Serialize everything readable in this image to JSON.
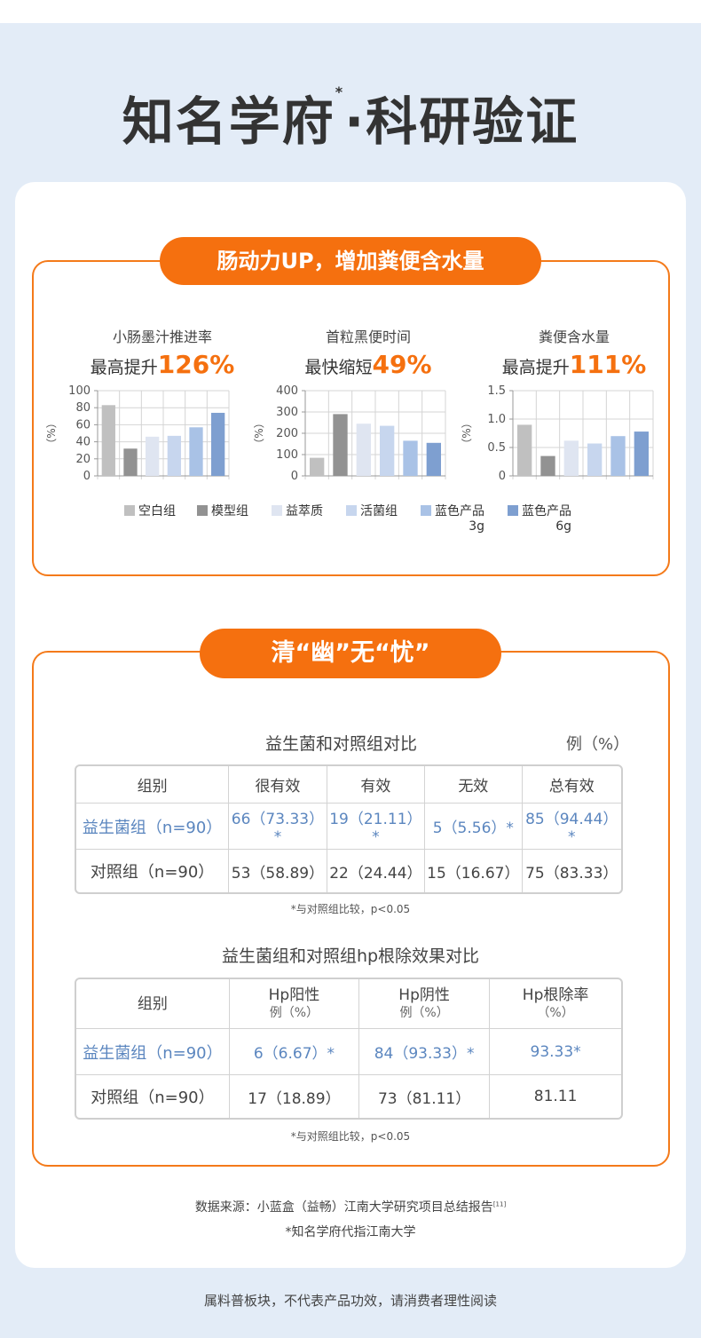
{
  "page": {
    "title_main": "知名学府",
    "title_mark": "*",
    "title_rest": "·科研验证"
  },
  "section1": {
    "pill": "肠动力UP，增加粪便含水量",
    "metrics": [
      {
        "label": "小肠墨汁推进率",
        "prefix": "最高提升",
        "value": "126%"
      },
      {
        "label": "首粒黑便时间",
        "prefix": "最快缩短",
        "value": "49%"
      },
      {
        "label": "粪便含水量",
        "prefix": "最高提升",
        "value": "111%"
      }
    ],
    "legend": [
      {
        "line1": "空白组",
        "line2": "",
        "color": "#c0c0c0"
      },
      {
        "line1": "模型组",
        "line2": "",
        "color": "#929292"
      },
      {
        "line1": "益萃质",
        "line2": "",
        "color": "#dfe5f1"
      },
      {
        "line1": "活菌组",
        "line2": "",
        "color": "#c7d6ee"
      },
      {
        "line1": "蓝色产品",
        "line2": "3g",
        "color": "#a9c2e6"
      },
      {
        "line1": "蓝色产品",
        "line2": "6g",
        "color": "#7e9fd0"
      }
    ]
  },
  "chart_data": [
    {
      "type": "bar",
      "title": "",
      "ylabel": "（%）",
      "categories": [
        "空白组",
        "模型组",
        "益萃质",
        "活菌组",
        "蓝色产品3g",
        "蓝色产品6g"
      ],
      "values": [
        83,
        32,
        46,
        47,
        57,
        74
      ],
      "ylim": [
        0,
        100
      ],
      "yticks": [
        "0",
        "20",
        "40",
        "60",
        "80",
        "100"
      ],
      "colors": [
        "#c0c0c0",
        "#929292",
        "#dfe5f1",
        "#c7d6ee",
        "#a9c2e6",
        "#7e9fd0"
      ],
      "grid": true
    },
    {
      "type": "bar",
      "title": "",
      "ylabel": "（%）",
      "categories": [
        "空白组",
        "模型组",
        "益萃质",
        "活菌组",
        "蓝色产品3g",
        "蓝色产品6g"
      ],
      "values": [
        85,
        290,
        245,
        235,
        165,
        155
      ],
      "ylim": [
        0,
        400
      ],
      "yticks": [
        "0",
        "100",
        "200",
        "300",
        "400"
      ],
      "colors": [
        "#c0c0c0",
        "#929292",
        "#dfe5f1",
        "#c7d6ee",
        "#a9c2e6",
        "#7e9fd0"
      ],
      "grid": true
    },
    {
      "type": "bar",
      "title": "",
      "ylabel": "（%）",
      "categories": [
        "空白组",
        "模型组",
        "益萃质",
        "活菌组",
        "蓝色产品3g",
        "蓝色产品6g"
      ],
      "values": [
        0.9,
        0.35,
        0.62,
        0.57,
        0.7,
        0.78
      ],
      "ylim": [
        0,
        1.5
      ],
      "yticks": [
        "0",
        "0.5",
        "1.0",
        "1.5"
      ],
      "colors": [
        "#c0c0c0",
        "#929292",
        "#dfe5f1",
        "#c7d6ee",
        "#a9c2e6",
        "#7e9fd0"
      ],
      "grid": true
    }
  ],
  "section2": {
    "pill": "清“幽”无“忧”",
    "table1": {
      "title": "益生菌和对照组对比",
      "unit": "例（%）",
      "headers": [
        "组别",
        "很有效",
        "有效",
        "无效",
        "总有效"
      ],
      "rows": [
        [
          "益生菌组（n=90）",
          "66（73.33）*",
          "19（21.11）*",
          "5（5.56）*",
          "85（94.44）*"
        ],
        [
          "对照组（n=90）",
          "53（58.89）",
          "22（24.44）",
          "15（16.67）",
          "75（83.33）"
        ]
      ],
      "note": "*与对照组比较，p<0.05"
    },
    "table2": {
      "title": "益生菌组和对照组hp根除效果对比",
      "headers": [
        {
          "l1": "组别",
          "l2": ""
        },
        {
          "l1": "Hp阳性",
          "l2": "例（%）"
        },
        {
          "l1": "Hp阴性",
          "l2": "例（%）"
        },
        {
          "l1": "Hp根除率",
          "l2": "（%）"
        }
      ],
      "rows": [
        [
          "益生菌组（n=90）",
          "6（6.67）*",
          "84（93.33）*",
          "93.33*"
        ],
        [
          "对照组（n=90）",
          "17（18.89）",
          "73（81.11）",
          "81.11"
        ]
      ],
      "note": "*与对照组比较，p<0.05"
    }
  },
  "source": {
    "line1": "数据来源：小蓝盒（益畅）江南大学研究项目总结报告",
    "ref": "[11]",
    "line2": "*知名学府代指江南大学"
  },
  "footer": "属料普板块，不代表产品功效，请消费者理性阅读"
}
